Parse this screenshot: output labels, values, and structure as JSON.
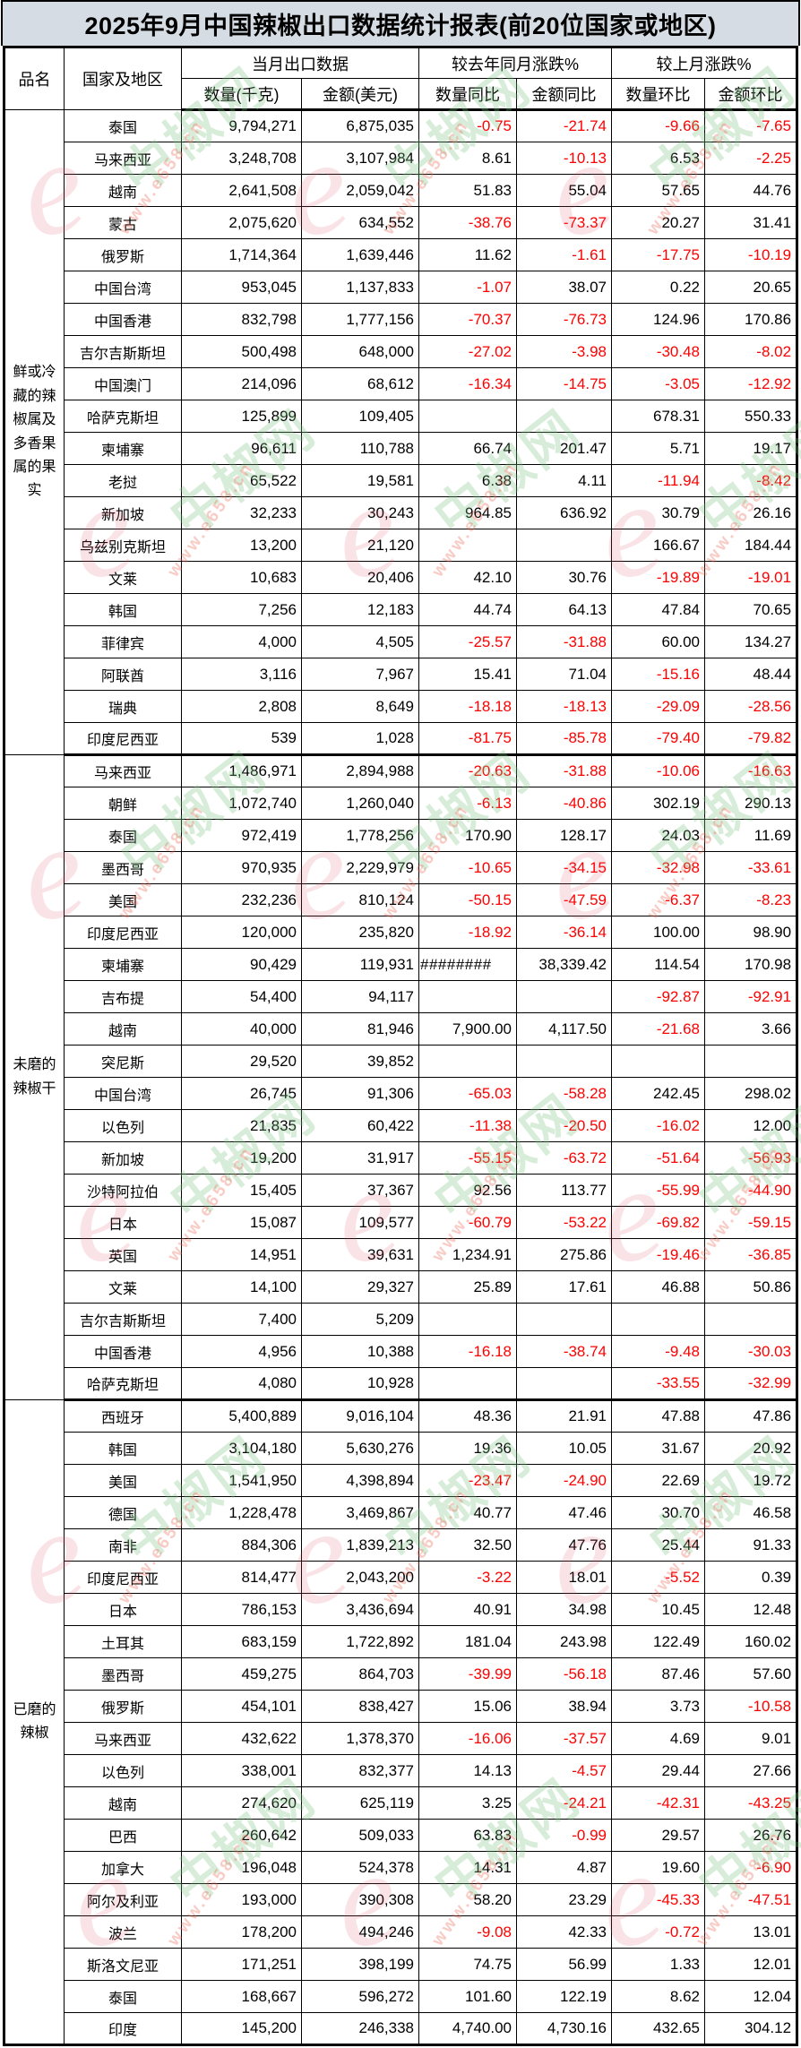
{
  "title": "2025年9月中国辣椒出口数据统计报表(前20位国家或地区)",
  "header": {
    "product": "品名",
    "country": "国家及地区",
    "month_data": "当月出口数据",
    "qty_kg": "数量(千克)",
    "amount_usd": "金额(美元)",
    "yoy": "较去年同月涨跌%",
    "qty_yoy": "数量同比",
    "amount_yoy": "金额同比",
    "mom": "较上月涨跌%",
    "qty_mom": "数量环比",
    "amount_mom": "金额环比"
  },
  "colors": {
    "negative_value": "#FF0000",
    "title_background": "#D6DCE4",
    "border": "#000000"
  },
  "watermark": {
    "site_name": "中椒网",
    "url": "www.e658.cn",
    "logo_letter": "e"
  },
  "groups": [
    {
      "name": "鲜或冷藏的辣椒属及多香果属的果实",
      "rows": [
        [
          "泰国",
          "9,794,271",
          "6,875,035",
          "-0.75",
          "-21.74",
          "-9.66",
          "-7.65"
        ],
        [
          "马来西亚",
          "3,248,708",
          "3,107,984",
          "8.61",
          "-10.13",
          "6.53",
          "-2.25"
        ],
        [
          "越南",
          "2,641,508",
          "2,059,042",
          "51.83",
          "55.04",
          "57.65",
          "44.76"
        ],
        [
          "蒙古",
          "2,075,620",
          "634,552",
          "-38.76",
          "-73.37",
          "20.27",
          "31.41"
        ],
        [
          "俄罗斯",
          "1,714,364",
          "1,639,446",
          "11.62",
          "-1.61",
          "-17.75",
          "-10.19"
        ],
        [
          "中国台湾",
          "953,045",
          "1,137,833",
          "-1.07",
          "38.07",
          "0.22",
          "20.65"
        ],
        [
          "中国香港",
          "832,798",
          "1,777,156",
          "-70.37",
          "-76.73",
          "124.96",
          "170.86"
        ],
        [
          "吉尔吉斯斯坦",
          "500,498",
          "648,000",
          "-27.02",
          "-3.98",
          "-30.48",
          "-8.02"
        ],
        [
          "中国澳门",
          "214,096",
          "68,612",
          "-16.34",
          "-14.75",
          "-3.05",
          "-12.92"
        ],
        [
          "哈萨克斯坦",
          "125,899",
          "109,405",
          "",
          "",
          "678.31",
          "550.33"
        ],
        [
          "柬埔寨",
          "96,611",
          "110,788",
          "66.74",
          "201.47",
          "5.71",
          "19.17"
        ],
        [
          "老挝",
          "65,522",
          "19,581",
          "6.38",
          "4.11",
          "-11.94",
          "-8.42"
        ],
        [
          "新加坡",
          "32,233",
          "30,243",
          "964.85",
          "636.92",
          "30.79",
          "26.16"
        ],
        [
          "乌兹别克斯坦",
          "13,200",
          "21,120",
          "",
          "",
          "166.67",
          "184.44"
        ],
        [
          "文莱",
          "10,683",
          "20,406",
          "42.10",
          "30.76",
          "-19.89",
          "-19.01"
        ],
        [
          "韩国",
          "7,256",
          "12,183",
          "44.74",
          "64.13",
          "47.84",
          "70.65"
        ],
        [
          "菲律宾",
          "4,000",
          "4,505",
          "-25.57",
          "-31.88",
          "60.00",
          "134.27"
        ],
        [
          "阿联酋",
          "3,116",
          "7,967",
          "15.41",
          "71.04",
          "-15.16",
          "48.44"
        ],
        [
          "瑞典",
          "2,808",
          "8,649",
          "-18.18",
          "-18.13",
          "-29.09",
          "-28.56"
        ],
        [
          "印度尼西亚",
          "539",
          "1,028",
          "-81.75",
          "-85.78",
          "-79.40",
          "-79.82"
        ]
      ]
    },
    {
      "name": "未磨的辣椒干",
      "rows": [
        [
          "马来西亚",
          "1,486,971",
          "2,894,988",
          "-20.63",
          "-31.88",
          "-10.06",
          "-16.63"
        ],
        [
          "朝鲜",
          "1,072,740",
          "1,260,040",
          "-6.13",
          "-40.86",
          "302.19",
          "290.13"
        ],
        [
          "泰国",
          "972,419",
          "1,778,256",
          "170.90",
          "128.17",
          "24.03",
          "11.69"
        ],
        [
          "墨西哥",
          "970,935",
          "2,229,979",
          "-10.65",
          "-34.15",
          "-32.98",
          "-33.61"
        ],
        [
          "美国",
          "232,236",
          "810,124",
          "-50.15",
          "-47.59",
          "-6.37",
          "-8.23"
        ],
        [
          "印度尼西亚",
          "120,000",
          "235,820",
          "-18.92",
          "-36.14",
          "100.00",
          "98.90"
        ],
        [
          "柬埔寨",
          "90,429",
          "119,931",
          "########",
          "38,339.42",
          "114.54",
          "170.98"
        ],
        [
          "吉布提",
          "54,400",
          "94,117",
          "",
          "",
          "-92.87",
          "-92.91"
        ],
        [
          "越南",
          "40,000",
          "81,946",
          "7,900.00",
          "4,117.50",
          "-21.68",
          "3.66"
        ],
        [
          "突尼斯",
          "29,520",
          "39,852",
          "",
          "",
          "",
          ""
        ],
        [
          "中国台湾",
          "26,745",
          "91,306",
          "-65.03",
          "-58.28",
          "242.45",
          "298.02"
        ],
        [
          "以色列",
          "21,835",
          "60,422",
          "-11.38",
          "-20.50",
          "-16.02",
          "12.00"
        ],
        [
          "新加坡",
          "19,200",
          "31,917",
          "-55.15",
          "-63.72",
          "-51.64",
          "-56.93"
        ],
        [
          "沙特阿拉伯",
          "15,405",
          "37,367",
          "92.56",
          "113.77",
          "-55.99",
          "-44.90"
        ],
        [
          "日本",
          "15,087",
          "109,577",
          "-60.79",
          "-53.22",
          "-69.82",
          "-59.15"
        ],
        [
          "英国",
          "14,951",
          "39,631",
          "1,234.91",
          "275.86",
          "-19.46",
          "-36.85"
        ],
        [
          "文莱",
          "14,100",
          "29,327",
          "25.89",
          "17.61",
          "46.88",
          "50.86"
        ],
        [
          "吉尔吉斯斯坦",
          "7,400",
          "5,209",
          "",
          "",
          "",
          ""
        ],
        [
          "中国香港",
          "4,956",
          "10,388",
          "-16.18",
          "-38.74",
          "-9.48",
          "-30.03"
        ],
        [
          "哈萨克斯坦",
          "4,080",
          "10,928",
          "",
          "",
          "-33.55",
          "-32.99"
        ]
      ]
    },
    {
      "name": "已磨的辣椒",
      "rows": [
        [
          "西班牙",
          "5,400,889",
          "9,016,104",
          "48.36",
          "21.91",
          "47.88",
          "47.86"
        ],
        [
          "韩国",
          "3,104,180",
          "5,630,276",
          "19.36",
          "10.05",
          "31.67",
          "20.92"
        ],
        [
          "美国",
          "1,541,950",
          "4,398,894",
          "-23.47",
          "-24.90",
          "22.69",
          "19.72"
        ],
        [
          "德国",
          "1,228,478",
          "3,469,867",
          "40.77",
          "47.46",
          "30.70",
          "46.58"
        ],
        [
          "南非",
          "884,306",
          "1,839,213",
          "32.50",
          "47.76",
          "25.44",
          "91.33"
        ],
        [
          "印度尼西亚",
          "814,477",
          "2,043,200",
          "-3.22",
          "18.01",
          "-5.52",
          "0.39"
        ],
        [
          "日本",
          "786,153",
          "3,436,694",
          "40.91",
          "34.98",
          "10.45",
          "12.48"
        ],
        [
          "土耳其",
          "683,159",
          "1,722,892",
          "181.04",
          "243.98",
          "122.49",
          "160.02"
        ],
        [
          "墨西哥",
          "459,275",
          "864,703",
          "-39.99",
          "-56.18",
          "87.46",
          "57.60"
        ],
        [
          "俄罗斯",
          "454,101",
          "838,427",
          "15.06",
          "38.94",
          "3.73",
          "-10.58"
        ],
        [
          "马来西亚",
          "432,622",
          "1,378,370",
          "-16.06",
          "-37.57",
          "4.69",
          "9.01"
        ],
        [
          "以色列",
          "338,001",
          "832,377",
          "14.13",
          "-4.57",
          "29.44",
          "27.66"
        ],
        [
          "越南",
          "274,620",
          "625,119",
          "3.25",
          "-24.21",
          "-42.31",
          "-43.25"
        ],
        [
          "巴西",
          "260,642",
          "509,033",
          "63.83",
          "-0.99",
          "29.57",
          "26.76"
        ],
        [
          "加拿大",
          "196,048",
          "524,378",
          "14.31",
          "4.87",
          "19.60",
          "-6.90"
        ],
        [
          "阿尔及利亚",
          "193,000",
          "390,308",
          "58.20",
          "23.29",
          "-45.33",
          "-47.51"
        ],
        [
          "波兰",
          "178,200",
          "494,246",
          "-9.08",
          "42.33",
          "-0.72",
          "13.01"
        ],
        [
          "斯洛文尼亚",
          "171,251",
          "398,199",
          "74.75",
          "56.99",
          "1.33",
          "12.01"
        ],
        [
          "泰国",
          "168,667",
          "596,272",
          "101.60",
          "122.19",
          "8.62",
          "12.04"
        ],
        [
          "印度",
          "145,200",
          "246,338",
          "4,740.00",
          "4,730.16",
          "432.65",
          "304.12"
        ]
      ]
    }
  ]
}
